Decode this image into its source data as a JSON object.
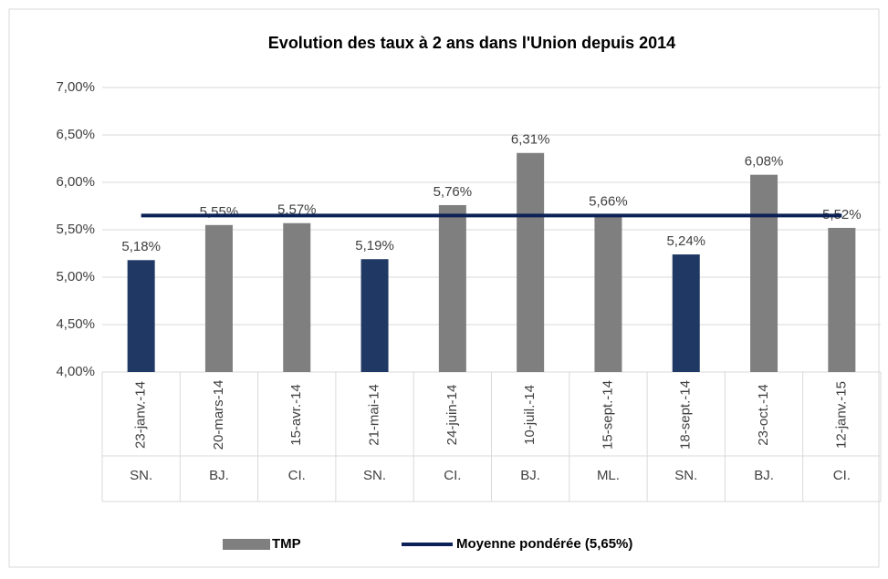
{
  "chart_data": {
    "type": "bar",
    "title": "Evolution des taux à 2 ans dans l'Union depuis 2014",
    "categories": [
      "23-janv.-14",
      "20-mars-14",
      "15-avr.-14",
      "21-mai-14",
      "24-juin-14",
      "10-juil.-14",
      "15-sept.-14",
      "18-sept.-14",
      "23-oct.-14",
      "12-janv.-15"
    ],
    "groups": [
      "SN.",
      "BJ.",
      "CI.",
      "SN.",
      "CI.",
      "BJ.",
      "ML.",
      "SN.",
      "BJ.",
      "CI."
    ],
    "series": [
      {
        "name": "TMP",
        "type": "bar",
        "color": "#7f7f7f",
        "colors": [
          "#203864",
          "#7f7f7f",
          "#7f7f7f",
          "#203864",
          "#7f7f7f",
          "#7f7f7f",
          "#7f7f7f",
          "#203864",
          "#7f7f7f",
          "#7f7f7f"
        ],
        "values": [
          5.18,
          5.55,
          5.57,
          5.19,
          5.76,
          6.31,
          5.66,
          5.24,
          6.08,
          5.52
        ],
        "value_labels": [
          "5,18%",
          "5,55%",
          "5,57%",
          "5,19%",
          "5,76%",
          "6,31%",
          "5,66%",
          "5,24%",
          "6,08%",
          "5,52%"
        ]
      },
      {
        "name": "Moyenne pondérée (5,65%)",
        "type": "line",
        "color": "#0b2157",
        "values": [
          5.65,
          5.65,
          5.65,
          5.65,
          5.65,
          5.65,
          5.65,
          5.65,
          5.65,
          5.65
        ]
      }
    ],
    "ylim": [
      4,
      7
    ],
    "yticks": [
      {
        "value": 4,
        "label": "4,00%"
      },
      {
        "value": 4.5,
        "label": "4,50%"
      },
      {
        "value": 5,
        "label": "5,00%"
      },
      {
        "value": 5.5,
        "label": "5,50%"
      },
      {
        "value": 6,
        "label": "6,00%"
      },
      {
        "value": 6.5,
        "label": "6,50%"
      },
      {
        "value": 7,
        "label": "7,00%"
      }
    ],
    "grid": true,
    "legend": "bottom"
  }
}
